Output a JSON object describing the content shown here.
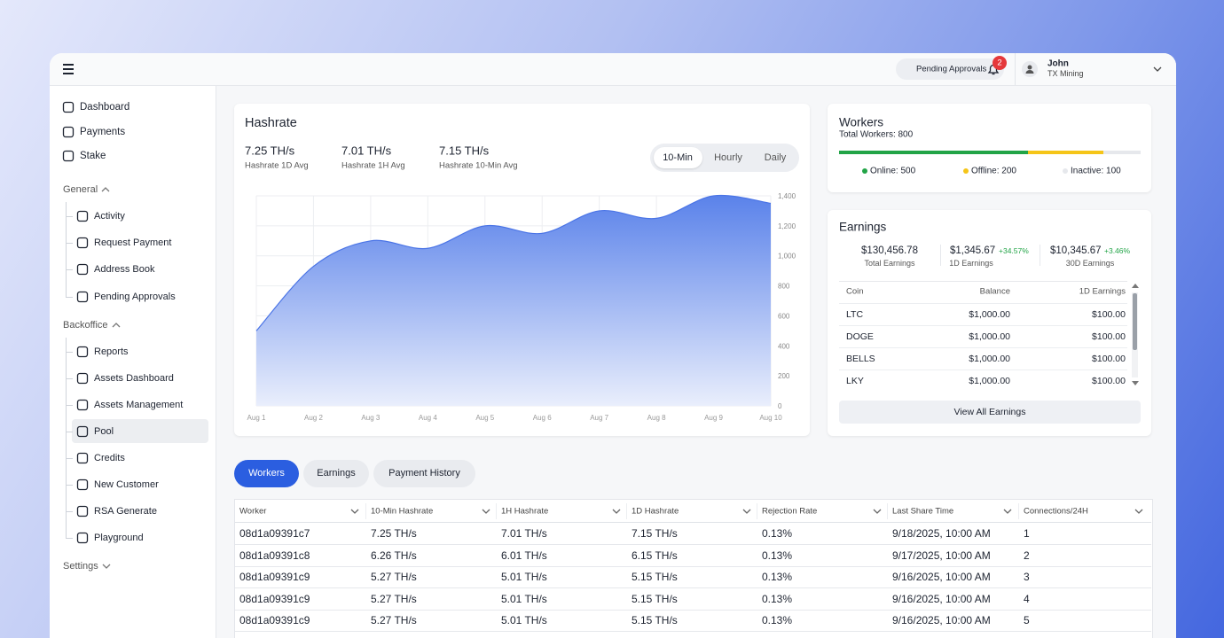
{
  "header": {
    "notification_label": "Pending Approvals",
    "notification_count": 2,
    "user_name": "John",
    "user_org": "TX Mining"
  },
  "sidebar": {
    "top": [
      {
        "label": "Dashboard"
      },
      {
        "label": "Payments"
      },
      {
        "label": "Stake"
      }
    ],
    "sections": [
      {
        "title": "General",
        "expanded": true,
        "items": [
          {
            "label": "Activity"
          },
          {
            "label": "Request Payment"
          },
          {
            "label": "Address Book"
          },
          {
            "label": "Pending Approvals"
          }
        ]
      },
      {
        "title": "Backoffice",
        "expanded": true,
        "items": [
          {
            "label": "Reports"
          },
          {
            "label": "Assets Dashboard"
          },
          {
            "label": "Assets Management"
          },
          {
            "label": "Pool",
            "active": true
          },
          {
            "label": "Credits"
          },
          {
            "label": "New Customer"
          },
          {
            "label": "RSA Generate"
          },
          {
            "label": "Playground"
          }
        ]
      },
      {
        "title": "Settings",
        "expanded": false,
        "items": []
      }
    ]
  },
  "hashrate": {
    "title": "Hashrate",
    "stats": [
      {
        "value": "7.25 TH/s",
        "label": "Hashrate 1D Avg"
      },
      {
        "value": "7.01 TH/s",
        "label": "Hashrate 1H Avg"
      },
      {
        "value": "7.15 TH/s",
        "label": "Hashrate 10-Min Avg"
      }
    ],
    "ranges": [
      {
        "label": "10-Min",
        "active": true
      },
      {
        "label": "Hourly"
      },
      {
        "label": "Daily"
      }
    ]
  },
  "chart_data": {
    "type": "area",
    "categories": [
      "Aug 1",
      "Aug 2",
      "Aug 3",
      "Aug 4",
      "Aug 5",
      "Aug 6",
      "Aug 7",
      "Aug 8",
      "Aug 9",
      "Aug 10"
    ],
    "values": [
      500,
      930,
      1100,
      1050,
      1200,
      1150,
      1300,
      1250,
      1400,
      1350
    ],
    "color": "#4a74e6",
    "ylim": [
      0,
      1400
    ],
    "yticks": [
      0,
      200,
      400,
      600,
      800,
      {
        "value": 1000,
        "label": "1,000"
      },
      {
        "value": 1200,
        "label": "1,200"
      },
      {
        "value": 1400,
        "label": "1,400"
      }
    ],
    "grid": true,
    "y_axis_side": "right"
  },
  "workers": {
    "title": "Workers",
    "total": "Total Workers: 800",
    "segments": [
      {
        "value": 500,
        "label": "Online: 500",
        "color": "#22a447"
      },
      {
        "value": 200,
        "label": "Offline: 200",
        "color": "#f5c518"
      },
      {
        "value": 100,
        "label": "Inactive: 100",
        "color": "#e6e8ec"
      }
    ]
  },
  "earnings": {
    "title": "Earnings",
    "stats": [
      {
        "value": "$130,456.78",
        "label": "Total Earnings"
      },
      {
        "value": "$1,345.67",
        "change": "+34.57%",
        "label": "1D Earnings"
      },
      {
        "value": "$10,345.67",
        "change": "+3.46%",
        "label": "30D Earnings"
      }
    ],
    "table": {
      "columns": [
        "Coin",
        "Balance",
        "1D Earnings"
      ],
      "rows": [
        [
          "LTC",
          "$1,000.00",
          "$100.00"
        ],
        [
          "DOGE",
          "$1,000.00",
          "$100.00"
        ],
        [
          "BELLS",
          "$1,000.00",
          "$100.00"
        ],
        [
          "LKY",
          "$1,000.00",
          "$100.00"
        ]
      ]
    },
    "button": "View All Earnings"
  },
  "tabs": [
    {
      "label": "Workers",
      "active": true
    },
    {
      "label": "Earnings"
    },
    {
      "label": "Payment History"
    }
  ],
  "workers_table": {
    "columns": [
      "Worker",
      "10-Min Hashrate",
      "1H Hashrate",
      "1D Hashrate",
      "Rejection Rate",
      "Last Share Time",
      "Connections/24H"
    ],
    "rows": [
      [
        "08d1a09391c7",
        "7.25 TH/s",
        "7.01 TH/s",
        "7.15 TH/s",
        "0.13%",
        "9/18/2025, 10:00 AM",
        "1"
      ],
      [
        "08d1a09391c8",
        "6.26 TH/s",
        "6.01 TH/s",
        "6.15 TH/s",
        "0.13%",
        "9/17/2025, 10:00 AM",
        "2"
      ],
      [
        "08d1a09391c9",
        "5.27 TH/s",
        "5.01 TH/s",
        "5.15 TH/s",
        "0.13%",
        "9/16/2025, 10:00 AM",
        "3"
      ],
      [
        "08d1a09391c9",
        "5.27 TH/s",
        "5.01 TH/s",
        "5.15 TH/s",
        "0.13%",
        "9/16/2025, 10:00 AM",
        "4"
      ],
      [
        "08d1a09391c9",
        "5.27 TH/s",
        "5.01 TH/s",
        "5.15 TH/s",
        "0.13%",
        "9/16/2025, 10:00 AM",
        "5"
      ]
    ]
  }
}
